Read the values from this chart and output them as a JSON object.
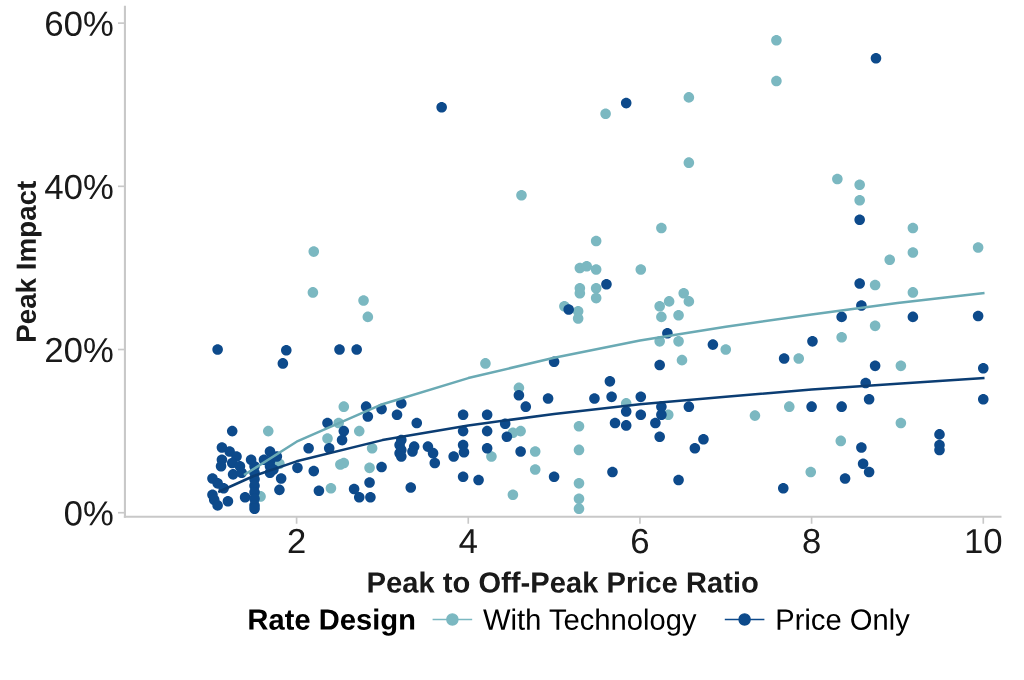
{
  "chart_data": {
    "type": "scatter",
    "xlabel": "Peak to Off-Peak Price Ratio",
    "ylabel": "Peak Impact",
    "legend_title": "Rate Design",
    "legend": "bottom",
    "marker": "circle",
    "line_style": "solid",
    "xlim": [
      0,
      10.2
    ],
    "ylim": [
      -0.5,
      62
    ],
    "xticks": [
      2,
      4,
      6,
      8,
      10
    ],
    "yticks": [
      {
        "value": 0,
        "label": "0%"
      },
      {
        "value": 20,
        "label": "20%"
      },
      {
        "value": 40,
        "label": "40%"
      },
      {
        "value": 60,
        "label": "60%"
      }
    ],
    "series": [
      {
        "name": "With Technology",
        "color": "#7bb8c1",
        "x": [
          2.2,
          5.6,
          6.57,
          6.57,
          4.62,
          6.25,
          5.49,
          5.3,
          5.38,
          5.49,
          6.01,
          7.59,
          7.59,
          8.3,
          8.56,
          8.56,
          9.18,
          9.18,
          8.91,
          9.94,
          2.19,
          2.78,
          2.83,
          2.55,
          2.49,
          2.73,
          1.67,
          2.36,
          5.3,
          5.49,
          5.3,
          5.49,
          5.12,
          5.28,
          5.28,
          6.23,
          6.34,
          6.51,
          6.57,
          6.45,
          6.25,
          6.45,
          6.23,
          6.49,
          4.2,
          4.59,
          5.84,
          6.33,
          5.29,
          4.52,
          4.61,
          8.74,
          9.18,
          8.74,
          8.35,
          7.0,
          7.85,
          9.04,
          7.74,
          7.34,
          9.04,
          1.58,
          1.8,
          2.4,
          2.51,
          2.55,
          2.85,
          2.88,
          4.27,
          4.78,
          4.78,
          4.52,
          5.29,
          5.29,
          5.29,
          5.29,
          8.34,
          7.99
        ],
        "values": [
          32.0,
          48.9,
          50.9,
          42.9,
          38.9,
          34.9,
          33.3,
          30.0,
          30.2,
          29.8,
          29.8,
          57.9,
          52.9,
          40.9,
          40.2,
          38.3,
          34.9,
          31.9,
          31.0,
          32.5,
          27.0,
          26.0,
          24.0,
          13.0,
          11.0,
          10.0,
          10.0,
          9.1,
          27.5,
          27.5,
          26.9,
          26.3,
          25.3,
          24.7,
          23.8,
          25.3,
          25.9,
          26.9,
          25.9,
          24.2,
          24.0,
          21.0,
          21.0,
          18.7,
          18.3,
          15.3,
          13.4,
          12.0,
          10.6,
          9.8,
          10.0,
          27.9,
          27.0,
          22.9,
          21.5,
          20.0,
          18.9,
          18.0,
          13.0,
          11.9,
          11.0,
          2.0,
          6.0,
          3.0,
          5.9,
          6.1,
          5.5,
          7.9,
          6.9,
          7.5,
          5.3,
          2.2,
          7.7,
          3.6,
          1.7,
          0.5,
          8.8,
          5.0
        ]
      },
      {
        "name": "Price Only",
        "color": "#0d4a8b",
        "x": [
          3.69,
          5.84,
          8.75,
          8.56,
          1.08,
          1.88,
          1.84,
          2.5,
          2.7,
          2.81,
          2.36,
          2.55,
          2.53,
          2.83,
          2.99,
          3.17,
          3.22,
          1.25,
          5.61,
          5.17,
          6.32,
          6.23,
          5.0,
          3.4,
          4.59,
          4.67,
          4.93,
          5.47,
          5.67,
          5.65,
          6.01,
          5.84,
          6.01,
          6.25,
          6.25,
          6.57,
          6.18,
          6.23,
          5.71,
          5.84,
          3.94,
          3.94,
          4.22,
          4.22,
          4.43,
          4.45,
          3.22,
          8.56,
          8.58,
          8.35,
          9.18,
          9.94,
          8.01,
          6.85,
          7.68,
          8.74,
          10.0,
          8.63,
          8.67,
          10.0,
          8.0,
          8.35,
          9.49,
          6.74,
          1.13,
          1.22,
          1.3,
          1.13,
          1.12,
          1.25,
          1.34,
          1.26,
          1.36,
          1.02,
          1.08,
          1.15,
          1.02,
          1.04,
          1.08,
          1.2,
          1.4,
          1.51,
          1.51,
          1.51,
          1.51,
          1.51,
          1.51,
          1.51,
          1.51,
          1.47,
          1.69,
          1.69,
          1.69,
          1.69,
          1.62,
          1.77,
          1.73,
          1.82,
          1.8,
          2.01,
          2.14,
          2.2,
          2.26,
          2.38,
          2.67,
          2.73,
          2.86,
          2.85,
          2.99,
          3.2,
          3.2,
          3.33,
          3.37,
          3.35,
          3.22,
          3.22,
          3.53,
          3.59,
          3.61,
          3.83,
          3.94,
          3.95,
          3.94,
          4.12,
          4.22,
          4.61,
          5.0,
          5.68,
          6.45,
          6.64,
          9.49,
          9.49,
          8.58,
          8.6,
          8.67,
          8.39,
          7.67
        ],
        "values": [
          49.7,
          50.2,
          55.7,
          35.9,
          20.0,
          19.9,
          18.3,
          20.0,
          20.0,
          13.0,
          11.0,
          10.0,
          8.9,
          11.8,
          12.7,
          12.0,
          13.4,
          10.0,
          28.0,
          24.9,
          22.0,
          18.1,
          18.5,
          11.0,
          14.4,
          13.0,
          14.0,
          14.0,
          14.2,
          16.1,
          14.2,
          12.4,
          12.0,
          13.0,
          12.0,
          13.0,
          11.0,
          9.3,
          11.0,
          10.7,
          12.0,
          10.0,
          12.0,
          10.0,
          10.9,
          9.3,
          8.9,
          28.1,
          25.4,
          24.0,
          24.0,
          24.1,
          21.0,
          20.6,
          18.9,
          18.0,
          17.7,
          15.9,
          13.9,
          13.9,
          13.0,
          13.0,
          9.6,
          9.0,
          8.0,
          7.5,
          6.9,
          6.5,
          5.7,
          6.1,
          5.7,
          4.7,
          4.9,
          4.2,
          3.6,
          3.0,
          2.2,
          1.6,
          0.9,
          1.4,
          1.9,
          5.7,
          4.9,
          4.1,
          3.3,
          2.5,
          1.7,
          0.9,
          0.5,
          6.5,
          7.5,
          6.3,
          5.7,
          4.9,
          6.5,
          6.9,
          5.3,
          4.2,
          2.8,
          5.5,
          7.9,
          5.1,
          2.7,
          7.9,
          2.9,
          1.9,
          1.9,
          3.7,
          5.6,
          8.3,
          7.3,
          3.1,
          8.1,
          7.5,
          7.7,
          6.9,
          8.1,
          7.3,
          6.1,
          6.9,
          8.3,
          7.4,
          4.4,
          4.0,
          7.9,
          7.5,
          4.4,
          5.0,
          4.0,
          7.9,
          8.3,
          7.7,
          8.0,
          6.0,
          5.0,
          4.2,
          3.0
        ]
      },
      {
        "type": "line",
        "marker": "none",
        "color": "#6aaab4",
        "x": [
          1.4,
          2,
          3,
          4,
          5,
          6,
          7,
          8,
          9,
          10
        ],
        "values": [
          4.7,
          8.7,
          13.3,
          16.5,
          19.0,
          21.1,
          22.8,
          24.3,
          25.7,
          26.9
        ]
      },
      {
        "type": "line",
        "marker": "none",
        "color": "#0b3d73",
        "x": [
          1.1,
          1.5,
          2,
          3,
          4,
          5,
          6,
          7,
          8,
          9,
          10
        ],
        "values": [
          2.6,
          4.5,
          6.3,
          8.9,
          10.7,
          12.1,
          13.3,
          14.2,
          15.1,
          15.8,
          16.5
        ]
      }
    ]
  }
}
